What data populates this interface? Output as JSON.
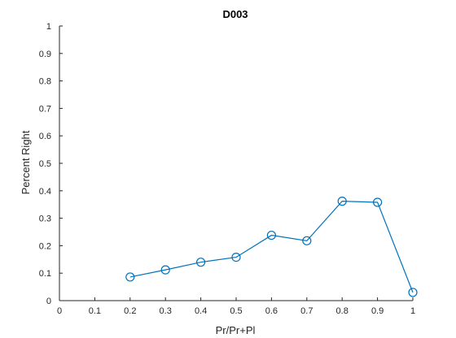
{
  "chart_data": {
    "type": "line",
    "title": "D003",
    "xlabel": "Pr/Pr+Pl",
    "ylabel": "Percent Right",
    "xlim": [
      0,
      1
    ],
    "ylim": [
      0,
      1
    ],
    "x_ticks": [
      "0",
      "0.1",
      "0.2",
      "0.3",
      "0.4",
      "0.5",
      "0.6",
      "0.7",
      "0.8",
      "0.9",
      "1"
    ],
    "y_ticks": [
      "0",
      "0.1",
      "0.2",
      "0.3",
      "0.4",
      "0.5",
      "0.6",
      "0.7",
      "0.8",
      "0.9",
      "1"
    ],
    "grid": false,
    "series": [
      {
        "color": "#0072BD",
        "marker": "circle-open",
        "x": [
          0.2,
          0.3,
          0.4,
          0.5,
          0.6,
          0.7,
          0.8,
          0.9,
          1.0
        ],
        "y": [
          0.086,
          0.112,
          0.14,
          0.158,
          0.238,
          0.218,
          0.362,
          0.358,
          0.03
        ]
      }
    ]
  }
}
